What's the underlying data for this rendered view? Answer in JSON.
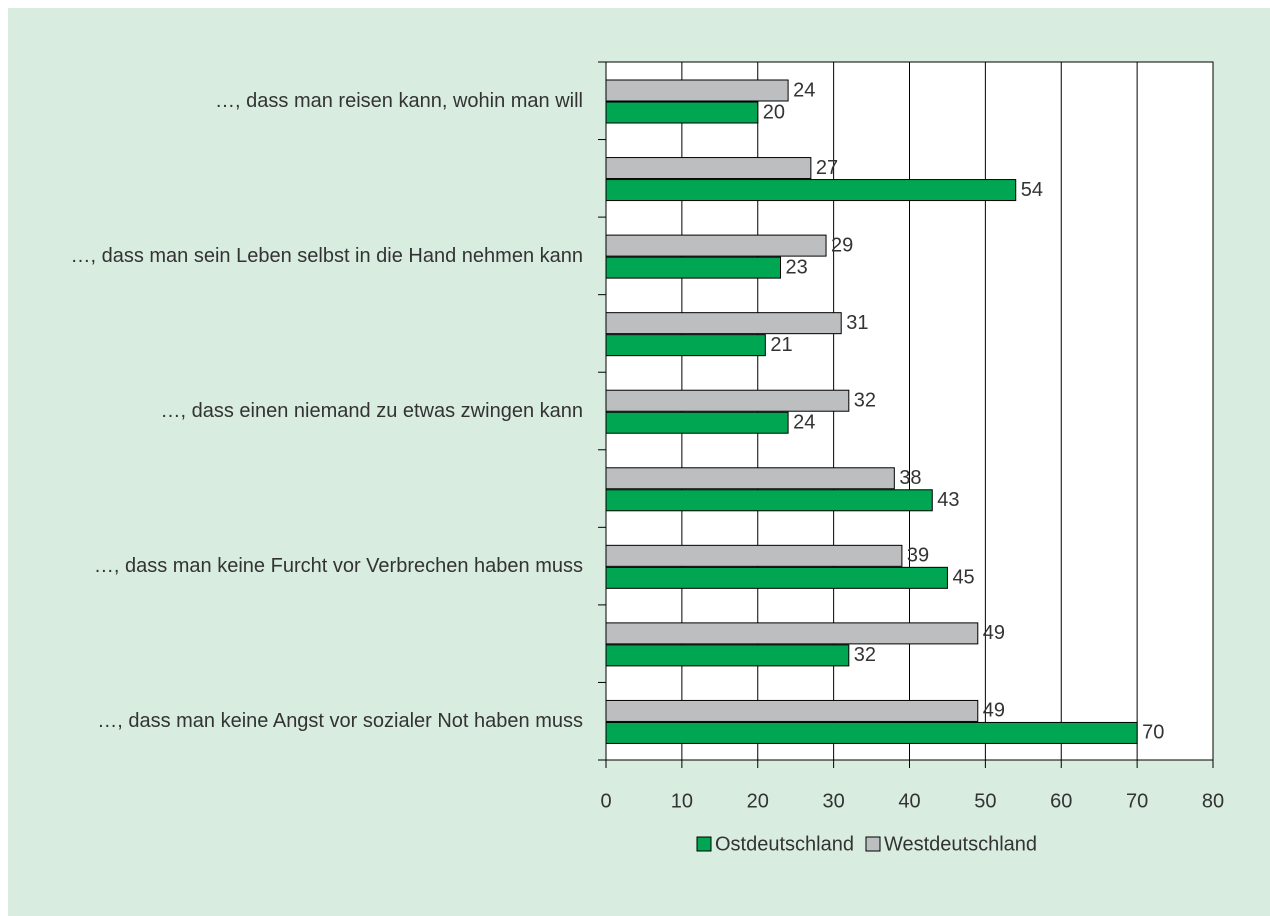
{
  "chart_data": {
    "type": "bar",
    "orientation": "horizontal",
    "categories": [
      "…, dass man reisen kann, wohin man will",
      null,
      "…, dass man sein Leben selbst in die Hand nehmen kann",
      null,
      "…, dass einen niemand zu etwas zwingen kann",
      null,
      "…, dass man keine Furcht vor Verbrechen haben muss",
      null,
      "…, dass man keine Angst vor sozialer Not haben muss"
    ],
    "series": [
      {
        "name": "Ostdeutschland",
        "color": "#00a651",
        "values": [
          20,
          54,
          23,
          21,
          24,
          43,
          45,
          32,
          70
        ]
      },
      {
        "name": "Westdeutschland",
        "color": "#bcbec0",
        "values": [
          24,
          27,
          29,
          31,
          32,
          38,
          39,
          49,
          49
        ]
      }
    ],
    "xlim": [
      0,
      80
    ],
    "xticks": [
      0,
      10,
      20,
      30,
      40,
      50,
      60,
      70,
      80
    ],
    "grid": true,
    "legend": "bottom"
  }
}
